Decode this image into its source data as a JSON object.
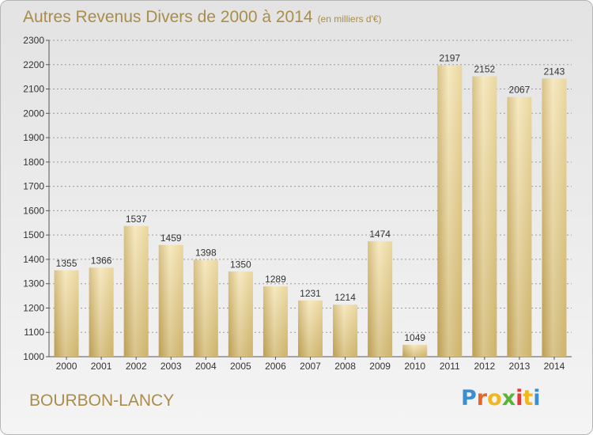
{
  "header": {
    "title": "Autres Revenus Divers de 2000 à 2014",
    "unit": "(en milliers d'€)"
  },
  "footer": {
    "commune": "BOURBON-LANCY"
  },
  "logo": {
    "text": "Proxiti",
    "colors": [
      "#3a8fd1",
      "#e8642a",
      "#f0b81e",
      "#5cb33a",
      "#e23a3a",
      "#f0b81e",
      "#3a8fd1"
    ]
  },
  "colors": {
    "bar": "#e3c97e",
    "bar_light": "#f3e2ad",
    "bar_dark": "#cdae5f",
    "title": "#a98d4a",
    "grid": "#9a9a9a"
  },
  "chart_data": {
    "type": "bar",
    "title": "Autres Revenus Divers de 2000 à 2014",
    "subtitle": "(en milliers d'€)",
    "categories": [
      "2000",
      "2001",
      "2002",
      "2003",
      "2004",
      "2005",
      "2006",
      "2007",
      "2008",
      "2009",
      "2010",
      "2011",
      "2012",
      "2013",
      "2014"
    ],
    "values": [
      1355,
      1366,
      1537,
      1459,
      1398,
      1350,
      1289,
      1231,
      1214,
      1474,
      1049,
      2197,
      2152,
      2067,
      2143
    ],
    "xlabel": "",
    "ylabel": "",
    "ylim": [
      1000,
      2300
    ],
    "yticks": [
      1000,
      1100,
      1200,
      1300,
      1400,
      1500,
      1600,
      1700,
      1800,
      1900,
      2000,
      2100,
      2200,
      2300
    ],
    "grid": true,
    "grid_style": "dashed-horizontal",
    "data_labels": true
  }
}
